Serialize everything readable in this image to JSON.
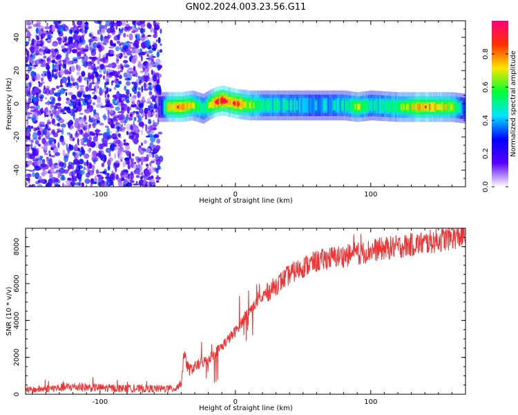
{
  "figure": {
    "title": "GN02.2024.003.23.56.G11"
  },
  "chart_data": [
    {
      "type": "heatmap",
      "title": "GN02.2024.003.23.56.G11",
      "xlabel": "Height of straight line (km)",
      "ylabel": "Frequency (Hz)",
      "xlim": [
        -155,
        170
      ],
      "ylim": [
        -50,
        50
      ],
      "x_ticks": [
        -100,
        0,
        100
      ],
      "x_tick_labels": [
        "-100",
        "0",
        "100"
      ],
      "y_ticks": [
        -40,
        -20,
        0,
        20,
        40
      ],
      "y_tick_labels": [
        "-40",
        "-20",
        "0",
        "20",
        "40"
      ],
      "grid": false,
      "noise_region_x": [
        -155,
        -55
      ],
      "ridge": {
        "x": [
          -57,
          -50,
          -40,
          -32,
          -28,
          -24,
          -20,
          -15,
          -10,
          -5,
          0,
          10,
          20,
          40,
          60,
          80,
          90,
          100,
          120,
          140,
          160,
          170
        ],
        "y": [
          -2,
          -2,
          -2,
          -1,
          -2,
          -3,
          -1,
          1,
          2,
          1,
          0,
          -1,
          -1,
          -1,
          -1,
          -1,
          -2,
          -1,
          -2,
          -2,
          -2,
          -3
        ],
        "amplitude": [
          0.35,
          0.8,
          0.9,
          0.75,
          0.7,
          0.6,
          0.75,
          0.9,
          0.95,
          0.85,
          0.9,
          0.75,
          0.65,
          0.6,
          0.55,
          0.6,
          0.75,
          0.6,
          0.7,
          0.85,
          0.75,
          0.45
        ]
      },
      "colorbar": {
        "label": "Normalized spectral amplitude",
        "range": [
          0,
          1
        ],
        "ticks": [
          0.0,
          0.2,
          0.4,
          0.6,
          0.8
        ],
        "tick_labels": [
          "0.0",
          "0.2",
          "0.4",
          "0.6",
          "0.8"
        ],
        "colors": [
          "#ffffff",
          "#5a00ff",
          "#0000ff",
          "#00e5ff",
          "#00ff30",
          "#ffe400",
          "#ff3000",
          "#ff0080"
        ]
      }
    },
    {
      "type": "line",
      "xlabel": "Height of straight line (km)",
      "ylabel": "SNR (10 * v/v)",
      "xlim": [
        -155,
        170
      ],
      "ylim": [
        0,
        9000
      ],
      "x_ticks": [
        -100,
        0,
        100
      ],
      "x_tick_labels": [
        "-100",
        "0",
        "100"
      ],
      "y_ticks": [
        0,
        2000,
        4000,
        6000,
        8000
      ],
      "y_tick_labels": [
        "0",
        "2000",
        "4000",
        "6000",
        "8000"
      ],
      "grid": false,
      "color": "#f03232",
      "series": [
        {
          "x": [
            -155,
            -140,
            -120,
            -100,
            -80,
            -60,
            -45,
            -40,
            -38,
            -36,
            -34,
            -30,
            -20,
            -10,
            0,
            10,
            20,
            30,
            40,
            50,
            60,
            70,
            80,
            90,
            100,
            110,
            120,
            140,
            160,
            170
          ],
          "y": [
            200,
            300,
            400,
            350,
            300,
            300,
            300,
            600,
            2200,
            1600,
            1300,
            1500,
            1900,
            2600,
            3400,
            4500,
            5300,
            5900,
            6500,
            6900,
            7200,
            7400,
            7500,
            7600,
            7800,
            7900,
            8000,
            8200,
            8500,
            8600
          ]
        }
      ]
    }
  ]
}
